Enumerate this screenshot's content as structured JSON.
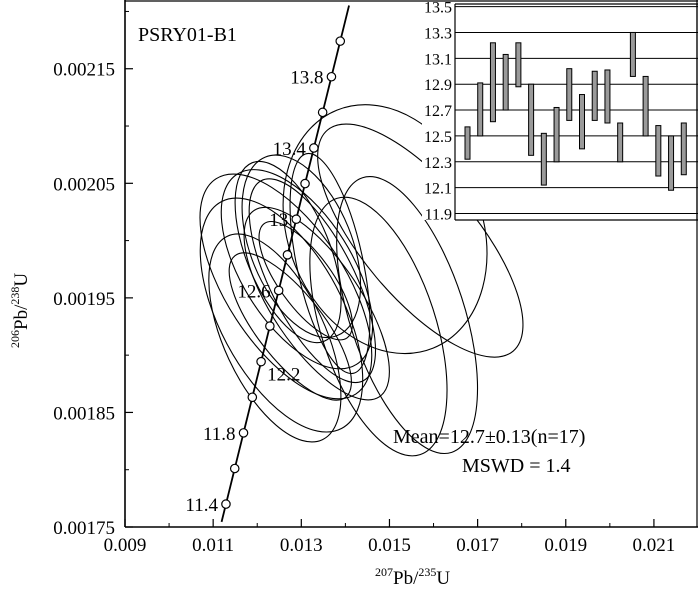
{
  "chart_data": {
    "type": "scatter",
    "sample_label": "PSRY01-B1",
    "xlabel_sup": "207",
    "xlabel_main": "Pb/",
    "xlabel_sup2": "235",
    "xlabel_tail": "U",
    "ylabel_sup": "206",
    "ylabel_main": "Pb/",
    "ylabel_sup2": "238",
    "ylabel_tail": "U",
    "xlim": [
      0.009,
      0.022
    ],
    "ylim": [
      0.00175,
      0.00221
    ],
    "x_ticks": [
      "0.009",
      "0.011",
      "0.013",
      "0.015",
      "0.017",
      "0.019",
      "0.021"
    ],
    "x_tick_values": [
      0.009,
      0.011,
      0.013,
      0.015,
      0.017,
      0.019,
      0.021
    ],
    "y_ticks": [
      "0.00175",
      "0.00185",
      "0.00195",
      "0.00205",
      "0.00215"
    ],
    "y_tick_values": [
      0.00175,
      0.00185,
      0.00195,
      0.00205,
      0.00215
    ],
    "concordia": {
      "ages_ma": [
        11.4,
        11.6,
        11.8,
        12.0,
        12.2,
        12.4,
        12.6,
        12.8,
        13.0,
        13.2,
        13.4,
        13.6,
        13.8,
        14.0
      ],
      "labels": [
        {
          "age": 11.4,
          "text": "11.4"
        },
        {
          "age": 11.8,
          "text": "11.8"
        },
        {
          "age": 12.2,
          "text": "12.2"
        },
        {
          "age": 12.6,
          "text": "12.6"
        },
        {
          "age": 13.0,
          "text": "13"
        },
        {
          "age": 13.4,
          "text": "13.4"
        },
        {
          "age": 13.8,
          "text": "13.8"
        }
      ]
    },
    "ellipses": [
      {
        "cx": 0.01255,
        "cy": 0.001935,
        "rx": 0.0014,
        "ry": 0.0004,
        "rot": -28
      },
      {
        "cx": 0.01265,
        "cy": 0.00196,
        "rx": 0.00135,
        "ry": 0.0004,
        "rot": -33
      },
      {
        "cx": 0.0129,
        "cy": 0.001975,
        "rx": 0.00125,
        "ry": 0.00035,
        "rot": -32
      },
      {
        "cx": 0.0124,
        "cy": 0.001915,
        "rx": 0.00115,
        "ry": 0.00035,
        "rot": -25
      },
      {
        "cx": 0.01325,
        "cy": 0.001965,
        "rx": 0.00095,
        "ry": 0.00035,
        "rot": -27
      },
      {
        "cx": 0.013,
        "cy": 0.001995,
        "rx": 0.00115,
        "ry": 0.0003,
        "rot": -22
      },
      {
        "cx": 0.0127,
        "cy": 0.00199,
        "rx": 0.00095,
        "ry": 0.0003,
        "rot": -22
      },
      {
        "cx": 0.01335,
        "cy": 0.001945,
        "rx": 0.001,
        "ry": 0.00035,
        "rot": -34
      },
      {
        "cx": 0.01275,
        "cy": 0.001925,
        "rx": 0.00075,
        "ry": 0.00028,
        "rot": -38
      },
      {
        "cx": 0.01365,
        "cy": 0.00198,
        "rx": 0.00075,
        "ry": 0.00035,
        "rot": -12
      },
      {
        "cx": 0.0131,
        "cy": 0.001965,
        "rx": 0.0006,
        "ry": 0.00022,
        "rot": -36
      },
      {
        "cx": 0.0149,
        "cy": 0.00201,
        "rx": 0.0022,
        "ry": 0.0004,
        "rot": -22
      },
      {
        "cx": 0.01475,
        "cy": 0.001925,
        "rx": 0.0013,
        "ry": 0.00042,
        "rot": -18
      },
      {
        "cx": 0.0154,
        "cy": 0.001935,
        "rx": 0.0013,
        "ry": 0.00045,
        "rot": -18
      },
      {
        "cx": 0.0157,
        "cy": 0.002,
        "rx": 0.0013,
        "ry": 0.00045,
        "rot": -40
      }
    ],
    "annotations": {
      "mean": "Mean=12.7±0.13(n=17)",
      "mswd": "MSWD = 1.4"
    },
    "inset": {
      "type": "weighted-mean-bars",
      "y_ticks": [
        "13.5",
        "13.3",
        "13.1",
        "12.9",
        "12.7",
        "12.5",
        "12.3",
        "12.1",
        "11.9"
      ],
      "y_tick_values": [
        13.5,
        13.3,
        13.1,
        12.9,
        12.7,
        12.5,
        12.3,
        12.1,
        11.9
      ],
      "ylim": [
        11.85,
        13.52
      ],
      "mean": 12.7,
      "bars": [
        {
          "low": 12.32,
          "high": 12.57
        },
        {
          "low": 12.5,
          "high": 12.91
        },
        {
          "low": 12.61,
          "high": 13.22
        },
        {
          "low": 12.7,
          "high": 13.13
        },
        {
          "low": 12.88,
          "high": 13.22
        },
        {
          "low": 12.35,
          "high": 12.9
        },
        {
          "low": 12.12,
          "high": 12.52
        },
        {
          "low": 12.3,
          "high": 12.72
        },
        {
          "low": 12.62,
          "high": 13.02
        },
        {
          "low": 12.4,
          "high": 12.82
        },
        {
          "low": 12.62,
          "high": 13.0
        },
        {
          "low": 12.6,
          "high": 13.01
        },
        {
          "low": 12.3,
          "high": 12.6
        },
        {
          "low": 12.96,
          "high": 13.3
        },
        {
          "low": 12.5,
          "high": 12.96
        },
        {
          "low": 12.19,
          "high": 12.58
        },
        {
          "low": 12.08,
          "high": 12.5
        },
        {
          "low": 12.2,
          "high": 12.6
        }
      ]
    }
  }
}
